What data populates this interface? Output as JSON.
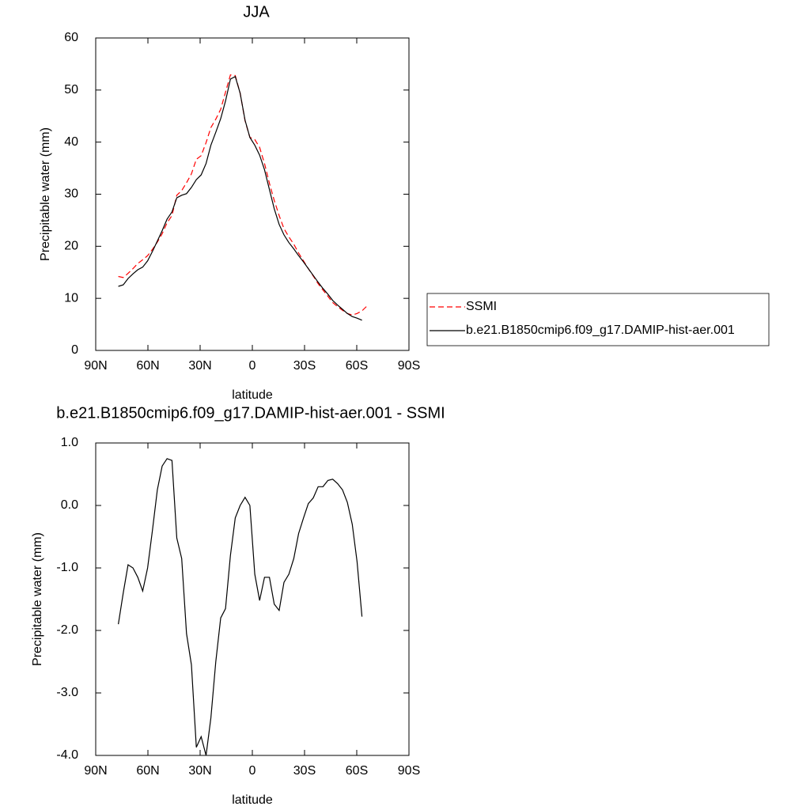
{
  "chart_data": [
    {
      "type": "line",
      "title": "JJA",
      "xlabel": "latitude",
      "ylabel": "Precipitable water (mm)",
      "x": [
        77,
        74.2,
        71.4,
        68.6,
        65.8,
        63,
        60.2,
        57.4,
        54.6,
        51.8,
        49,
        46.2,
        43.4,
        40.6,
        37.8,
        35,
        32.2,
        29.4,
        26.6,
        23.8,
        21,
        18.2,
        15.4,
        12.6,
        9.8,
        7,
        4.2,
        1.4,
        -1.4,
        -4.2,
        -7,
        -9.8,
        -12.6,
        -15.4,
        -18.2,
        -21,
        -23.8,
        -26.6,
        -29.4,
        -32.2,
        -35,
        -37.8,
        -40.6,
        -43.4,
        -46.2,
        -49,
        -51.8,
        -54.6,
        -57.4,
        -60.2,
        -63,
        -65.8
      ],
      "series": [
        {
          "name": "SSMI",
          "color": "#ff0000",
          "dash": true,
          "values": [
            14.2,
            14.0,
            14.8,
            15.7,
            16.7,
            17.4,
            18.2,
            19.4,
            20.8,
            22.4,
            24.5,
            25.9,
            29.8,
            30.7,
            32.2,
            33.9,
            36.7,
            37.4,
            39.9,
            42.8,
            44.4,
            46.3,
            49.6,
            52.9,
            52.8,
            49.4,
            44.1,
            40.9,
            40.5,
            39.0,
            35.9,
            32.1,
            28.8,
            25.9,
            23.4,
            21.8,
            20.4,
            18.7,
            17.2,
            15.7,
            14.3,
            12.8,
            11.6,
            10.4,
            9.2,
            8.4,
            7.7,
            7.1,
            6.8,
            7.1,
            7.6,
            8.5
          ]
        },
        {
          "name": "b.e21.B1850cmip6.f09_g17.DAMIP-hist-aer.001",
          "color": "#000000",
          "dash": false,
          "values": [
            12.3,
            12.6,
            13.8,
            14.7,
            15.5,
            16.0,
            17.2,
            19.0,
            21.0,
            23.0,
            25.2,
            26.6,
            29.3,
            29.8,
            30.1,
            31.3,
            32.8,
            33.7,
            35.9,
            39.4,
            41.9,
            44.5,
            47.9,
            52.1,
            52.6,
            49.4,
            44.2,
            40.9,
            39.4,
            37.5,
            34.7,
            30.9,
            27.2,
            24.2,
            22.2,
            20.7,
            19.5,
            18.2,
            17.0,
            15.7,
            14.4,
            13.1,
            11.9,
            10.8,
            9.6,
            8.7,
            7.9,
            7.1,
            6.5,
            6.2,
            5.8,
            null
          ]
        }
      ],
      "xlim": [
        90,
        -90
      ],
      "xticks": [
        {
          "value": 90,
          "label": "90N"
        },
        {
          "value": 60,
          "label": "60N"
        },
        {
          "value": 30,
          "label": "30N"
        },
        0,
        {
          "value": -30,
          "label": "30S"
        },
        {
          "value": -60,
          "label": "60S"
        },
        {
          "value": -90,
          "label": "90S"
        }
      ],
      "ylim": [
        0,
        60
      ],
      "yticks": [
        0,
        10,
        20,
        30,
        40,
        50,
        60
      ],
      "legend": "right"
    },
    {
      "type": "line",
      "title": "b.e21.B1850cmip6.f09_g17.DAMIP-hist-aer.001 - SSMI",
      "xlabel": "latitude",
      "ylabel": "Precipitable water (mm)",
      "x": [
        77,
        74.2,
        71.4,
        68.6,
        65.8,
        63,
        60.2,
        57.4,
        54.6,
        51.8,
        49,
        46.2,
        43.4,
        40.6,
        37.8,
        35,
        32.2,
        29.4,
        26.6,
        23.8,
        21,
        18.2,
        15.4,
        12.6,
        9.8,
        7,
        4.2,
        1.4,
        -1.4,
        -4.2,
        -7,
        -9.8,
        -12.6,
        -15.4,
        -18.2,
        -21,
        -23.8,
        -26.6,
        -29.4,
        -32.2,
        -35,
        -37.8,
        -40.6,
        -43.4,
        -46.2,
        -49,
        -51.8,
        -54.6,
        -57.4,
        -60.2,
        -63
      ],
      "color": "#000000",
      "values": [
        -1.9,
        -1.4,
        -0.95,
        -1.0,
        -1.15,
        -1.37,
        -1.0,
        -0.4,
        0.25,
        0.63,
        0.75,
        0.72,
        -0.52,
        -0.85,
        -2.05,
        -2.55,
        -3.87,
        -3.7,
        -4.0,
        -3.4,
        -2.5,
        -1.8,
        -1.65,
        -0.8,
        -0.2,
        0.0,
        0.13,
        0.0,
        -1.1,
        -1.52,
        -1.15,
        -1.15,
        -1.58,
        -1.68,
        -1.23,
        -1.1,
        -0.85,
        -0.45,
        -0.2,
        0.03,
        0.12,
        0.3,
        0.3,
        0.4,
        0.42,
        0.35,
        0.25,
        0.05,
        -0.3,
        -0.9,
        -1.78
      ],
      "xlim": [
        90,
        -90
      ],
      "xticks": [
        {
          "value": 90,
          "label": "90N"
        },
        {
          "value": 60,
          "label": "60N"
        },
        {
          "value": 30,
          "label": "30N"
        },
        0,
        {
          "value": -30,
          "label": "30S"
        },
        {
          "value": -60,
          "label": "60S"
        },
        {
          "value": -90,
          "label": "90S"
        }
      ],
      "ylim": [
        -4,
        1
      ],
      "yticks": [
        {
          "value": -4,
          "label": "-4.0"
        },
        {
          "value": -3,
          "label": "-3.0"
        },
        {
          "value": -2,
          "label": "-2.0"
        },
        {
          "value": -1,
          "label": "-1.0"
        },
        {
          "value": 0,
          "label": "0.0"
        },
        {
          "value": 1,
          "label": "1.0"
        }
      ]
    }
  ]
}
